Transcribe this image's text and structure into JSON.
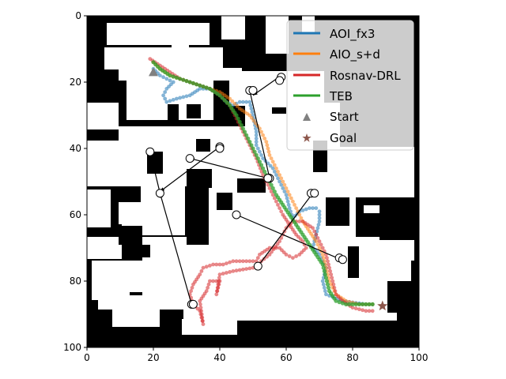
{
  "chart_data": {
    "type": "scatter",
    "title": "",
    "xlabel": "",
    "ylabel": "",
    "xlim": [
      0,
      100
    ],
    "ylim": [
      100,
      0
    ],
    "y_inverted": true,
    "grid": false,
    "legend_placement": "top-right",
    "background": "occupancy map (white = free space, black = obstacles)",
    "x_ticks": [
      "0",
      "20",
      "40",
      "60",
      "80",
      "100"
    ],
    "y_ticks": [
      "0",
      "20",
      "40",
      "60",
      "80",
      "100"
    ],
    "series": [
      {
        "name": "AOI_fx3",
        "color": "#1f77b4",
        "points": [
          [
            20,
            16
          ],
          [
            22,
            18
          ],
          [
            24,
            19
          ],
          [
            26,
            20
          ],
          [
            24,
            22
          ],
          [
            23,
            24
          ],
          [
            24,
            26
          ],
          [
            27,
            25
          ],
          [
            31,
            24
          ],
          [
            34,
            22
          ],
          [
            37,
            22
          ],
          [
            40,
            24
          ],
          [
            42,
            26
          ],
          [
            44,
            27
          ],
          [
            46,
            26
          ],
          [
            49,
            26
          ],
          [
            50,
            30
          ],
          [
            51,
            35
          ],
          [
            51,
            39
          ],
          [
            53,
            43
          ],
          [
            56,
            46
          ],
          [
            58,
            50
          ],
          [
            60,
            54
          ],
          [
            61,
            58
          ],
          [
            62,
            61
          ],
          [
            64,
            59
          ],
          [
            67,
            58
          ],
          [
            69,
            58
          ],
          [
            70,
            59
          ],
          [
            70,
            62
          ],
          [
            69,
            66
          ],
          [
            68,
            70
          ],
          [
            70,
            72
          ],
          [
            72,
            76
          ],
          [
            71,
            80
          ],
          [
            72,
            84
          ],
          [
            77,
            86
          ],
          [
            84,
            87
          ],
          [
            86,
            87
          ]
        ]
      },
      {
        "name": "AIO_s+d",
        "color": "#ff7f0e",
        "points": [
          [
            20,
            14
          ],
          [
            22,
            16
          ],
          [
            25,
            18
          ],
          [
            28,
            19
          ],
          [
            31,
            20
          ],
          [
            34,
            21
          ],
          [
            37,
            22
          ],
          [
            40,
            23
          ],
          [
            43,
            25
          ],
          [
            46,
            28
          ],
          [
            49,
            30
          ],
          [
            52,
            34
          ],
          [
            54,
            38
          ],
          [
            55,
            42
          ],
          [
            57,
            46
          ],
          [
            59,
            50
          ],
          [
            61,
            54
          ],
          [
            63,
            58
          ],
          [
            65,
            62
          ],
          [
            67,
            65
          ],
          [
            69,
            68
          ],
          [
            71,
            72
          ],
          [
            72,
            76
          ],
          [
            73,
            80
          ],
          [
            75,
            84
          ],
          [
            78,
            86
          ],
          [
            82,
            87
          ],
          [
            86,
            87
          ]
        ]
      },
      {
        "name": "Rosnav-DRL",
        "color": "#d62728",
        "points": [
          [
            19,
            13
          ],
          [
            22,
            15
          ],
          [
            25,
            17
          ],
          [
            28,
            19
          ],
          [
            31,
            20
          ],
          [
            34,
            21
          ],
          [
            37,
            22
          ],
          [
            40,
            24
          ],
          [
            43,
            27
          ],
          [
            45,
            31
          ],
          [
            47,
            35
          ],
          [
            49,
            39
          ],
          [
            51,
            43
          ],
          [
            53,
            48
          ],
          [
            55,
            52
          ],
          [
            57,
            56
          ],
          [
            59,
            60
          ],
          [
            61,
            63
          ],
          [
            63,
            66
          ],
          [
            65,
            68
          ],
          [
            66,
            70
          ],
          [
            64,
            72
          ],
          [
            62,
            73
          ],
          [
            60,
            72
          ],
          [
            58,
            70
          ],
          [
            55,
            70
          ],
          [
            52,
            72
          ],
          [
            51,
            74
          ],
          [
            47,
            74
          ],
          [
            44,
            74
          ],
          [
            41,
            75
          ],
          [
            38,
            75
          ],
          [
            35,
            76
          ],
          [
            34,
            78
          ],
          [
            32,
            81
          ],
          [
            31,
            84
          ],
          [
            32,
            87
          ],
          [
            34,
            89
          ],
          [
            35,
            93
          ],
          [
            34,
            86
          ],
          [
            36,
            83
          ],
          [
            37,
            80
          ],
          [
            40,
            80
          ],
          [
            39,
            84
          ],
          [
            40,
            78
          ],
          [
            44,
            77
          ],
          [
            50,
            76
          ],
          [
            55,
            72
          ],
          [
            58,
            68
          ],
          [
            60,
            64
          ],
          [
            62,
            62
          ],
          [
            65,
            62
          ],
          [
            68,
            64
          ],
          [
            70,
            68
          ],
          [
            72,
            72
          ],
          [
            73,
            76
          ],
          [
            74,
            80
          ],
          [
            75,
            84
          ],
          [
            77,
            86
          ],
          [
            80,
            88
          ],
          [
            84,
            89
          ],
          [
            86,
            89
          ]
        ]
      },
      {
        "name": "TEB",
        "color": "#2ca02c",
        "points": [
          [
            20,
            14
          ],
          [
            22,
            16
          ],
          [
            25,
            18
          ],
          [
            28,
            19
          ],
          [
            31,
            20
          ],
          [
            34,
            21
          ],
          [
            37,
            22
          ],
          [
            40,
            24
          ],
          [
            43,
            27
          ],
          [
            45,
            30
          ],
          [
            47,
            34
          ],
          [
            49,
            38
          ],
          [
            51,
            42
          ],
          [
            53,
            46
          ],
          [
            55,
            50
          ],
          [
            57,
            54
          ],
          [
            59,
            57
          ],
          [
            61,
            60
          ],
          [
            63,
            63
          ],
          [
            65,
            66
          ],
          [
            67,
            69
          ],
          [
            69,
            72
          ],
          [
            71,
            75
          ],
          [
            72,
            79
          ],
          [
            73,
            83
          ],
          [
            75,
            86
          ],
          [
            78,
            87
          ],
          [
            82,
            87
          ],
          [
            86,
            87
          ]
        ]
      }
    ],
    "markers": [
      {
        "name": "Start",
        "symbol": "triangle",
        "color": "#808080",
        "x": 20,
        "y": 17
      },
      {
        "name": "Goal",
        "symbol": "star",
        "color": "#8c564b",
        "x": 89,
        "y": 87.5
      }
    ],
    "obstacle_moves": [
      {
        "x1": 58.5,
        "y1": 18,
        "x2": 50,
        "y2": 24
      },
      {
        "x1": 49,
        "y1": 22.5,
        "x2": 55,
        "y2": 49
      },
      {
        "x1": 40,
        "y1": 39.5,
        "x2": 22,
        "y2": 53
      },
      {
        "x1": 54.5,
        "y1": 49,
        "x2": 31,
        "y2": 43
      },
      {
        "x1": 22,
        "y1": 53.5,
        "x2": 19,
        "y2": 41
      },
      {
        "x1": 45,
        "y1": 60,
        "x2": 76.5,
        "y2": 73.5
      },
      {
        "x1": 51.5,
        "y1": 75.5,
        "x2": 68,
        "y2": 53.5
      },
      {
        "x1": 31.5,
        "y1": 87,
        "x2": 22,
        "y2": 53.5
      }
    ],
    "obstacle_positions": [
      [
        58.5,
        18.5
      ],
      [
        58,
        19.5
      ],
      [
        49,
        22.5
      ],
      [
        50,
        22.5
      ],
      [
        40,
        39.5
      ],
      [
        40,
        40
      ],
      [
        31,
        43
      ],
      [
        19,
        41
      ],
      [
        55,
        49
      ],
      [
        54.5,
        49
      ],
      [
        22,
        53.5
      ],
      [
        67.5,
        53.5
      ],
      [
        68.5,
        53.5
      ],
      [
        45,
        60
      ],
      [
        76,
        73
      ],
      [
        77,
        73.5
      ],
      [
        51.5,
        75.5
      ],
      [
        31.5,
        87
      ],
      [
        32,
        87
      ]
    ]
  }
}
